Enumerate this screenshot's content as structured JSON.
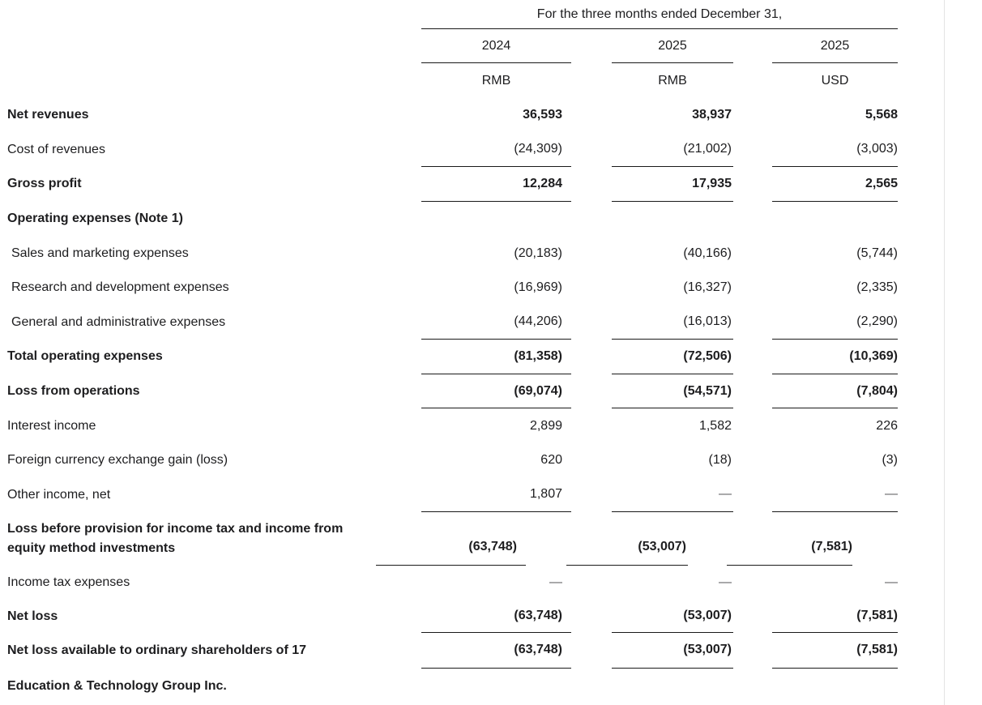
{
  "document": {
    "period_title": "For the three months ended December 31,"
  },
  "columns": [
    {
      "year": "2024",
      "currency": "RMB"
    },
    {
      "year": "2025",
      "currency": "RMB"
    },
    {
      "year": "2025",
      "currency": "USD"
    }
  ],
  "rows": [
    {
      "label": "Net revenues",
      "values": [
        "36,593",
        "38,937",
        "5,568"
      ]
    },
    {
      "label": "Cost of revenues",
      "values": [
        "(24,309)",
        "(21,002)",
        "(3,003)"
      ]
    },
    {
      "label": "Gross profit",
      "values": [
        "12,284",
        "17,935",
        "2,565"
      ]
    },
    {
      "label": "Operating expenses (Note 1)",
      "values": [
        "",
        "",
        ""
      ]
    },
    {
      "label": "Sales and marketing expenses",
      "values": [
        "(20,183)",
        "(40,166)",
        "(5,744)"
      ]
    },
    {
      "label": "Research and development expenses",
      "values": [
        "(16,969)",
        "(16,327)",
        "(2,335)"
      ]
    },
    {
      "label": "General and administrative expenses",
      "values": [
        "(44,206)",
        "(16,013)",
        "(2,290)"
      ]
    },
    {
      "label": "Total operating expenses",
      "values": [
        "(81,358)",
        "(72,506)",
        "(10,369)"
      ]
    },
    {
      "label": "Loss from operations",
      "values": [
        "(69,074)",
        "(54,571)",
        "(7,804)"
      ]
    },
    {
      "label": "Interest income",
      "values": [
        "2,899",
        "1,582",
        "226"
      ]
    },
    {
      "label": "Foreign currency exchange gain (loss)",
      "values": [
        "620",
        "(18)",
        "(3)"
      ]
    },
    {
      "label": "Other income, net",
      "values": [
        "1,807",
        "—",
        "—"
      ]
    },
    {
      "label": "Loss before provision for income tax and income from equity method investments",
      "values": [
        "(63,748)",
        "(53,007)",
        "(7,581)"
      ]
    },
    {
      "label": "Income tax expenses",
      "values": [
        "—",
        "—",
        "—"
      ]
    },
    {
      "label": "Net loss",
      "values": [
        "(63,748)",
        "(53,007)",
        "(7,581)"
      ]
    },
    {
      "label": "Net loss available to ordinary shareholders of 17",
      "values": [
        "(63,748)",
        "(53,007)",
        "(7,581)"
      ]
    },
    {
      "label": "Education & Technology Group Inc.",
      "values": [
        "",
        "",
        ""
      ]
    }
  ],
  "colors": {
    "rule": "#1a1a1a",
    "text": "#1d1d1f",
    "dash": "#5f5f60",
    "page_edge": "#e3e3e3"
  }
}
